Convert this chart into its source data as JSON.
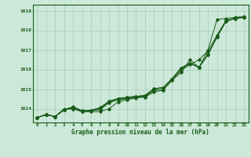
{
  "background_color": "#cce8d8",
  "grid_color": "#aacabc",
  "line_color": "#1a5c1a",
  "xlabel": "Graphe pression niveau de la mer (hPa)",
  "ylim": [
    1013.3,
    1019.3
  ],
  "xlim": [
    -0.5,
    23.5
  ],
  "yticks": [
    1014,
    1015,
    1016,
    1017,
    1018,
    1019
  ],
  "xticks": [
    0,
    1,
    2,
    3,
    4,
    5,
    6,
    7,
    8,
    9,
    10,
    11,
    12,
    13,
    14,
    15,
    16,
    17,
    18,
    19,
    20,
    21,
    22,
    23
  ],
  "series": [
    [
      1013.55,
      1013.7,
      1013.6,
      1014.0,
      1014.0,
      1013.85,
      1013.85,
      1013.85,
      1014.0,
      1014.35,
      1014.45,
      1014.55,
      1014.6,
      1014.85,
      1014.95,
      1015.45,
      1015.85,
      1016.5,
      1016.1,
      1017.0,
      1018.55,
      1018.6,
      1018.65,
      1018.7
    ],
    [
      1013.55,
      1013.7,
      1013.6,
      1013.95,
      1014.0,
      1013.85,
      1013.9,
      1013.95,
      1014.3,
      1014.45,
      1014.5,
      1014.6,
      1014.6,
      1014.95,
      1014.95,
      1015.45,
      1015.95,
      1016.25,
      1016.5,
      1016.95,
      1017.75,
      1018.5,
      1018.6,
      1018.65
    ],
    [
      1013.55,
      1013.7,
      1013.6,
      1013.95,
      1014.05,
      1013.88,
      1013.9,
      1014.0,
      1014.35,
      1014.5,
      1014.55,
      1014.6,
      1014.65,
      1015.0,
      1015.05,
      1015.5,
      1016.05,
      1016.3,
      1016.1,
      1016.75,
      1017.65,
      1018.45,
      1018.6,
      1018.65
    ],
    [
      1013.55,
      1013.7,
      1013.6,
      1013.95,
      1014.1,
      1013.9,
      1013.92,
      1014.05,
      1014.38,
      1014.52,
      1014.58,
      1014.63,
      1014.68,
      1015.02,
      1015.08,
      1015.52,
      1016.08,
      1016.32,
      1016.12,
      1016.78,
      1017.68,
      1018.47,
      1018.62,
      1018.67
    ],
    [
      1013.55,
      1013.7,
      1013.6,
      1013.95,
      1014.1,
      1013.9,
      1013.92,
      1014.05,
      1014.38,
      1014.52,
      1014.58,
      1014.63,
      1014.68,
      1015.02,
      1015.08,
      1015.52,
      1016.08,
      1016.32,
      1016.12,
      1016.78,
      1017.68,
      1018.47,
      1018.62,
      1018.67
    ]
  ]
}
